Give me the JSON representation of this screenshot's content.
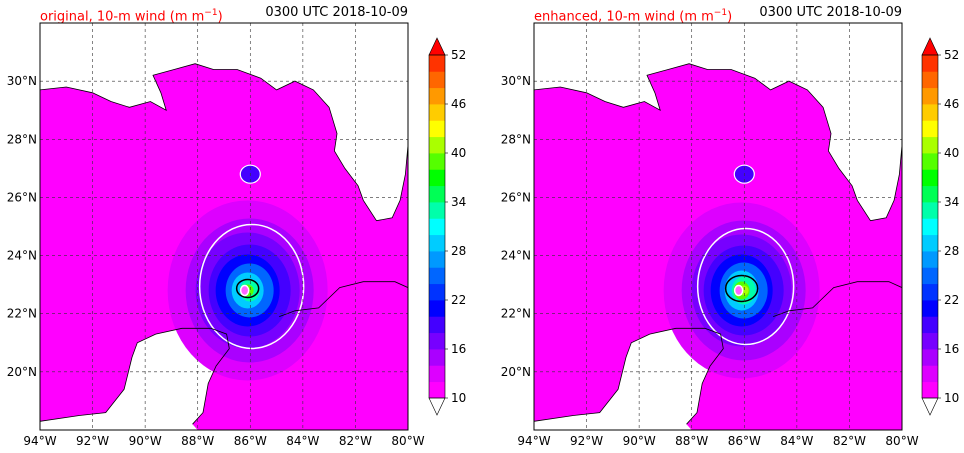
{
  "panels": [
    {
      "title": "original, 10-m wind (m m",
      "title_exp": "−1",
      "title_close": ")",
      "valid_time": "0300 UTC 2018-10-09",
      "core_strength": "original"
    },
    {
      "title": "enhanced, 10-m wind (m m",
      "title_exp": "−1",
      "title_close": ")",
      "valid_time": "0300 UTC 2018-10-09",
      "core_strength": "enhanced"
    }
  ],
  "map": {
    "lon_range": [
      -94,
      -80
    ],
    "lat_range": [
      18,
      32
    ],
    "lon_ticks": [
      -94,
      -92,
      -90,
      -88,
      -86,
      -84,
      -82,
      -80
    ],
    "lon_labels": [
      "94°W",
      "92°W",
      "90°W",
      "88°W",
      "86°W",
      "84°W",
      "82°W",
      "80°W"
    ],
    "lat_ticks": [
      20,
      22,
      24,
      26,
      28,
      30
    ],
    "lat_labels": [
      "20°N",
      "22°N",
      "24°N",
      "26°N",
      "28°N",
      "30°N"
    ],
    "gridlines": "dashed"
  },
  "colorbar": {
    "ticks": [
      "10",
      "16",
      "22",
      "28",
      "34",
      "40",
      "46",
      "52"
    ],
    "levels": [
      10,
      12,
      14,
      16,
      18,
      20,
      22,
      24,
      26,
      28,
      30,
      32,
      34,
      36,
      38,
      40,
      42,
      44,
      46,
      48,
      50,
      52
    ],
    "colors": [
      "#ff00ff",
      "#dd00ff",
      "#aa00ff",
      "#7700ff",
      "#4400ff",
      "#0000ff",
      "#0033ff",
      "#0066ff",
      "#0099ff",
      "#00ccff",
      "#00ffff",
      "#00ffaa",
      "#00ff55",
      "#00ff00",
      "#55ff00",
      "#aaff00",
      "#ffff00",
      "#ffcc00",
      "#ff9900",
      "#ff6600",
      "#ff3300"
    ],
    "extend": "both",
    "under_color": "#ffffff",
    "over_color": "#ff0000"
  },
  "field_colors": {
    "ocean_low": "#ff00ff",
    "coast": "#000000",
    "contour_white": "#ffffff",
    "contour_black": "#000000"
  }
}
